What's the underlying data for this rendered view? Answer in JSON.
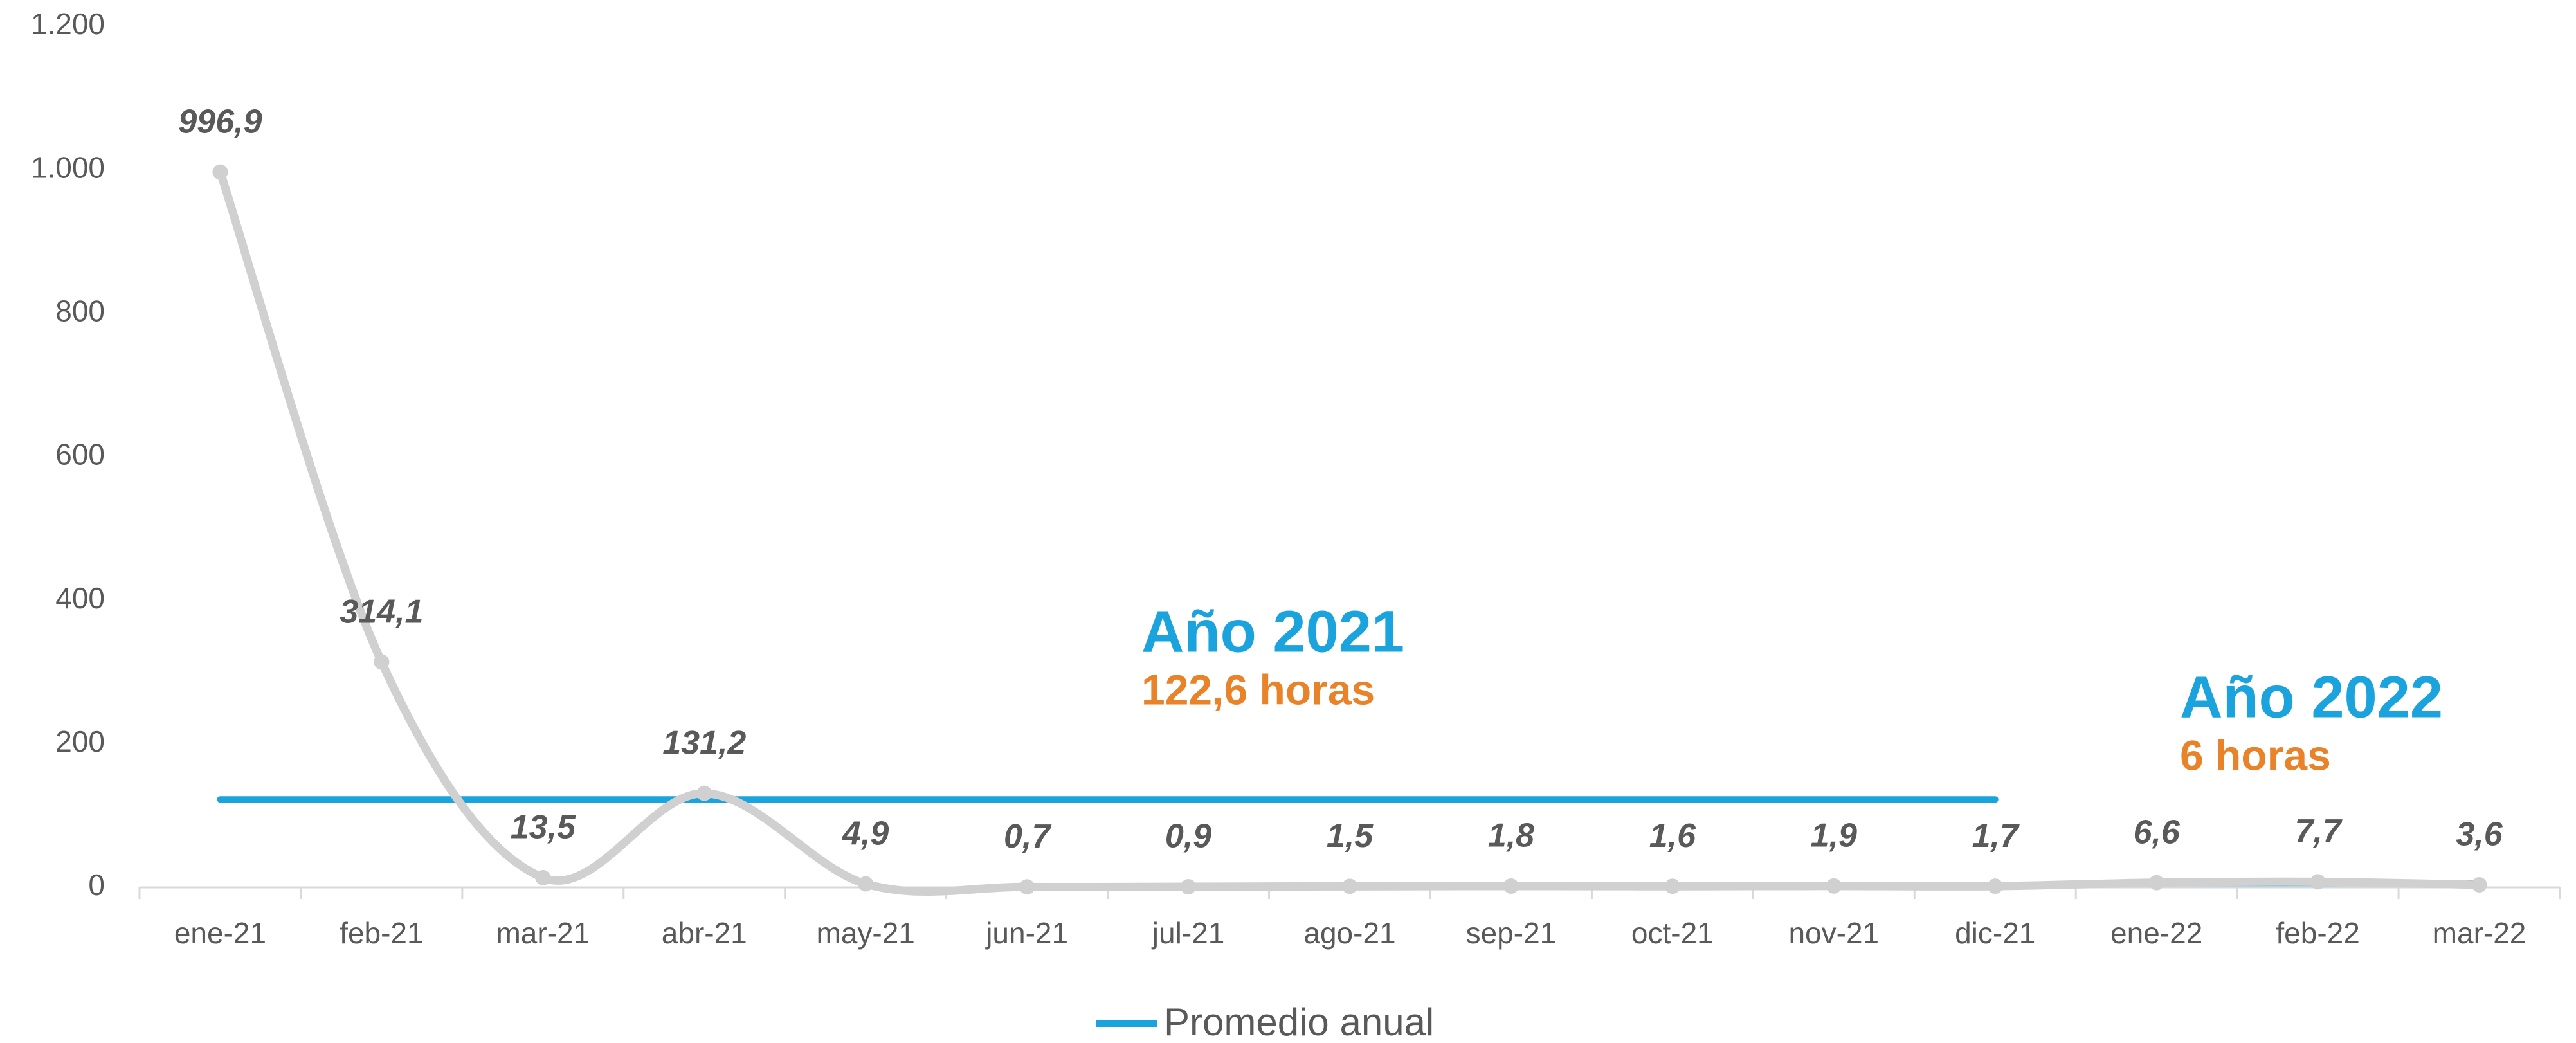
{
  "chart_data": {
    "type": "line",
    "categories": [
      "ene-21",
      "feb-21",
      "mar-21",
      "abr-21",
      "may-21",
      "jun-21",
      "jul-21",
      "ago-21",
      "sep-21",
      "oct-21",
      "nov-21",
      "dic-21",
      "ene-22",
      "feb-22",
      "mar-22"
    ],
    "series": [
      {
        "color": "#d0d0d0",
        "smooth": true,
        "values": [
          996.9,
          314.1,
          13.5,
          131.2,
          4.9,
          0.7,
          0.9,
          1.5,
          1.8,
          1.6,
          1.9,
          1.7,
          6.6,
          7.7,
          3.6
        ],
        "value_labels": [
          "996,9",
          "314,1",
          "13,5",
          "131,2",
          "4,9",
          "0,7",
          "0,9",
          "1,5",
          "1,8",
          "1,6",
          "1,9",
          "1,7",
          "6,6",
          "7,7",
          "3,6"
        ]
      },
      {
        "name": "Promedio anual",
        "color": "#1aa3dc",
        "values": [
          122.6,
          122.6,
          122.6,
          122.6,
          122.6,
          122.6,
          122.6,
          122.6,
          122.6,
          122.6,
          122.6,
          122.6,
          null,
          null,
          null
        ]
      },
      {
        "color": "#1aa3dc",
        "values": [
          null,
          null,
          null,
          null,
          null,
          null,
          null,
          null,
          null,
          null,
          null,
          null,
          6,
          6,
          6
        ]
      }
    ],
    "annotations": [
      {
        "title": "Año 2021",
        "text": "122,6 horas",
        "title_color": "#1aa3dc",
        "text_color": "#e8832a"
      },
      {
        "title": "Año 2022",
        "text": "6 horas",
        "title_color": "#1aa3dc",
        "text_color": "#e8832a"
      }
    ],
    "ylim": [
      0,
      1200
    ],
    "yticks": [
      0,
      200,
      400,
      600,
      800,
      {
        "value": 1000,
        "label": "1.000"
      },
      {
        "value": 1200,
        "label": "1.200"
      }
    ],
    "grid": false,
    "legend": "bottom"
  }
}
